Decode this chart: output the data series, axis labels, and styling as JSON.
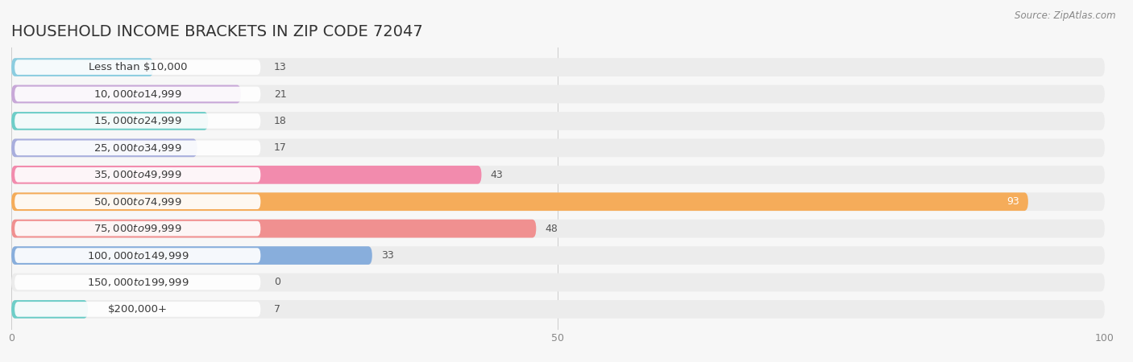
{
  "title": "HOUSEHOLD INCOME BRACKETS IN ZIP CODE 72047",
  "source": "Source: ZipAtlas.com",
  "categories": [
    "Less than $10,000",
    "$10,000 to $14,999",
    "$15,000 to $24,999",
    "$25,000 to $34,999",
    "$35,000 to $49,999",
    "$50,000 to $74,999",
    "$75,000 to $99,999",
    "$100,000 to $149,999",
    "$150,000 to $199,999",
    "$200,000+"
  ],
  "values": [
    13,
    21,
    18,
    17,
    43,
    93,
    48,
    33,
    0,
    7
  ],
  "bar_colors": [
    "#8CCDE0",
    "#C8A8D8",
    "#6ECEC8",
    "#A8AEDD",
    "#F28BAD",
    "#F5AC5A",
    "#F09090",
    "#88AEDC",
    "#C8A8D8",
    "#6ECEC8"
  ],
  "xlim": [
    0,
    100
  ],
  "xticks": [
    0,
    50,
    100
  ],
  "bg_color": "#f7f7f7",
  "row_bg_color": "#ececec",
  "label_box_color": "#ffffff",
  "title_fontsize": 14,
  "label_fontsize": 9.5,
  "value_fontsize": 9,
  "bar_height": 0.68,
  "value_inside_color": "#ffffff",
  "value_outside_color": "#555555"
}
